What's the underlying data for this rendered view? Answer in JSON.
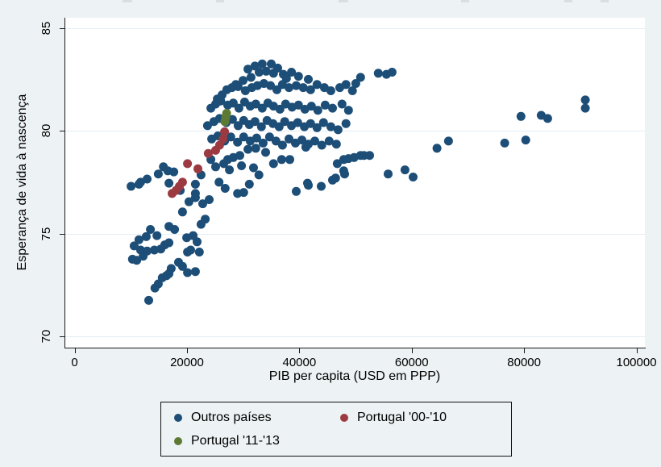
{
  "chart_data": {
    "type": "scatter",
    "title": "",
    "xlabel": "PIB per capita (USD em PPP)",
    "ylabel": "Esperança de vida à nascença",
    "xlim": [
      -1800,
      101500
    ],
    "ylim": [
      69.45,
      85.5
    ],
    "grid": "horizontal",
    "legend_position": "bottom-center",
    "x_ticks": [
      {
        "value": 0,
        "label": "0"
      },
      {
        "value": 20000,
        "label": "20000"
      },
      {
        "value": 40000,
        "label": "40000"
      },
      {
        "value": 60000,
        "label": "60000"
      },
      {
        "value": 80000,
        "label": "80000"
      },
      {
        "value": 100000,
        "label": "100000"
      }
    ],
    "y_ticks": [
      {
        "value": 70,
        "label": "70"
      },
      {
        "value": 75,
        "label": "75"
      },
      {
        "value": 80,
        "label": "80"
      },
      {
        "value": 85,
        "label": "85"
      }
    ],
    "series": [
      {
        "name": "Outros países",
        "color": "#1d4e77",
        "marker_radius": 5.5,
        "points": [
          [
            13200,
            71.75
          ],
          [
            14300,
            72.35
          ],
          [
            14900,
            72.55
          ],
          [
            15600,
            72.85
          ],
          [
            16350,
            72.95
          ],
          [
            17200,
            73.3
          ],
          [
            16800,
            73.05
          ],
          [
            18500,
            73.6
          ],
          [
            19200,
            73.4
          ],
          [
            20100,
            73.1
          ],
          [
            21500,
            73.15
          ],
          [
            10300,
            73.75
          ],
          [
            11050,
            73.7
          ],
          [
            12200,
            73.9
          ],
          [
            10600,
            74.4
          ],
          [
            11750,
            74.2
          ],
          [
            12900,
            74.15
          ],
          [
            14200,
            74.2
          ],
          [
            15350,
            74.25
          ],
          [
            16050,
            74.45
          ],
          [
            16800,
            74.55
          ],
          [
            11450,
            74.7
          ],
          [
            12750,
            74.85
          ],
          [
            19950,
            74.8
          ],
          [
            21100,
            74.9
          ],
          [
            21800,
            74.6
          ],
          [
            20650,
            74.2
          ],
          [
            20100,
            74.1
          ],
          [
            22200,
            74.1
          ],
          [
            13500,
            75.2
          ],
          [
            14650,
            74.9
          ],
          [
            16800,
            75.35
          ],
          [
            17800,
            75.2
          ],
          [
            19200,
            76.05
          ],
          [
            20350,
            76.55
          ],
          [
            21500,
            76.95
          ],
          [
            22500,
            75.45
          ],
          [
            23250,
            75.7
          ],
          [
            21500,
            76.75
          ],
          [
            22800,
            76.45
          ],
          [
            23950,
            76.65
          ],
          [
            21500,
            77.4
          ],
          [
            22500,
            77.85
          ],
          [
            25700,
            77.5
          ],
          [
            26800,
            77.2
          ],
          [
            29000,
            76.95
          ],
          [
            30100,
            77.0
          ],
          [
            31100,
            77.4
          ],
          [
            32800,
            77.85
          ],
          [
            41450,
            77.45
          ],
          [
            39450,
            77.05
          ],
          [
            41600,
            77.35
          ],
          [
            43900,
            77.3
          ],
          [
            10050,
            77.3
          ],
          [
            11450,
            77.4
          ],
          [
            11750,
            77.5
          ],
          [
            12900,
            77.65
          ],
          [
            14900,
            77.9
          ],
          [
            15800,
            78.25
          ],
          [
            16600,
            78.05
          ],
          [
            17650,
            78.0
          ],
          [
            16800,
            77.45
          ],
          [
            18800,
            77.1
          ],
          [
            45900,
            77.6
          ],
          [
            46450,
            77.7
          ],
          [
            47900,
            78.05
          ],
          [
            48050,
            77.9
          ],
          [
            46750,
            78.4
          ],
          [
            47900,
            78.6
          ],
          [
            48750,
            78.65
          ],
          [
            49750,
            78.7
          ],
          [
            50900,
            78.8
          ],
          [
            51500,
            78.8
          ],
          [
            52500,
            78.8
          ],
          [
            55800,
            77.9
          ],
          [
            58800,
            78.1
          ],
          [
            60250,
            77.75
          ],
          [
            64500,
            79.15
          ],
          [
            66550,
            79.5
          ],
          [
            76550,
            79.4
          ],
          [
            80300,
            79.55
          ],
          [
            79450,
            80.7
          ],
          [
            83050,
            80.75
          ],
          [
            84200,
            80.6
          ],
          [
            90900,
            81.5
          ],
          [
            90900,
            81.1
          ],
          [
            50050,
            82.3
          ],
          [
            50900,
            82.6
          ],
          [
            54050,
            82.8
          ],
          [
            55500,
            82.75
          ],
          [
            56500,
            82.85
          ],
          [
            30850,
            83.0
          ],
          [
            32100,
            83.15
          ],
          [
            33400,
            83.25
          ],
          [
            35000,
            83.25
          ],
          [
            36150,
            83.05
          ],
          [
            28700,
            82.25
          ],
          [
            30000,
            82.45
          ],
          [
            31400,
            82.6
          ],
          [
            32850,
            82.85
          ],
          [
            34100,
            82.9
          ],
          [
            35400,
            82.8
          ],
          [
            37150,
            82.75
          ],
          [
            38600,
            82.85
          ],
          [
            39850,
            82.65
          ],
          [
            41600,
            82.5
          ],
          [
            37700,
            82.55
          ],
          [
            25400,
            81.55
          ],
          [
            26250,
            81.75
          ],
          [
            27100,
            82.0
          ],
          [
            28000,
            82.1
          ],
          [
            29100,
            82.15
          ],
          [
            30400,
            81.95
          ],
          [
            31550,
            82.1
          ],
          [
            32550,
            82.2
          ],
          [
            33700,
            82.3
          ],
          [
            34850,
            82.2
          ],
          [
            36000,
            82.0
          ],
          [
            37000,
            82.25
          ],
          [
            38150,
            82.1
          ],
          [
            39450,
            82.2
          ],
          [
            40700,
            82.1
          ],
          [
            42000,
            82.0
          ],
          [
            43150,
            82.25
          ],
          [
            44450,
            82.1
          ],
          [
            45600,
            81.95
          ],
          [
            47200,
            82.1
          ],
          [
            48300,
            82.25
          ],
          [
            49450,
            81.95
          ],
          [
            24250,
            81.1
          ],
          [
            25100,
            81.3
          ],
          [
            26000,
            81.45
          ],
          [
            27250,
            81.25
          ],
          [
            28250,
            81.35
          ],
          [
            29250,
            81.1
          ],
          [
            30250,
            81.4
          ],
          [
            31250,
            81.2
          ],
          [
            32250,
            81.3
          ],
          [
            33400,
            81.1
          ],
          [
            34400,
            81.35
          ],
          [
            35400,
            81.2
          ],
          [
            36550,
            81.05
          ],
          [
            37550,
            81.3
          ],
          [
            38700,
            81.15
          ],
          [
            39850,
            81.25
          ],
          [
            41000,
            81.05
          ],
          [
            42150,
            81.2
          ],
          [
            43300,
            81.0
          ],
          [
            44600,
            81.25
          ],
          [
            45900,
            81.1
          ],
          [
            47600,
            81.3
          ],
          [
            48750,
            81.0
          ],
          [
            23650,
            80.25
          ],
          [
            24800,
            80.45
          ],
          [
            25800,
            80.6
          ],
          [
            27000,
            80.4
          ],
          [
            28100,
            80.55
          ],
          [
            29100,
            80.25
          ],
          [
            30100,
            80.5
          ],
          [
            31100,
            80.3
          ],
          [
            32100,
            80.45
          ],
          [
            33250,
            80.2
          ],
          [
            34250,
            80.5
          ],
          [
            35300,
            80.35
          ],
          [
            36400,
            80.2
          ],
          [
            37400,
            80.45
          ],
          [
            38600,
            80.25
          ],
          [
            39700,
            80.4
          ],
          [
            40900,
            80.2
          ],
          [
            42000,
            80.35
          ],
          [
            43150,
            80.15
          ],
          [
            44300,
            80.4
          ],
          [
            45600,
            80.2
          ],
          [
            46900,
            80.05
          ],
          [
            48300,
            80.35
          ],
          [
            24400,
            79.6
          ],
          [
            25500,
            79.75
          ],
          [
            26700,
            79.5
          ],
          [
            27800,
            79.7
          ],
          [
            29000,
            79.45
          ],
          [
            30100,
            79.7
          ],
          [
            31250,
            79.5
          ],
          [
            32400,
            79.65
          ],
          [
            33550,
            79.4
          ],
          [
            34700,
            79.7
          ],
          [
            35850,
            79.5
          ],
          [
            37000,
            79.3
          ],
          [
            38150,
            79.6
          ],
          [
            39300,
            79.4
          ],
          [
            40450,
            79.55
          ],
          [
            41600,
            79.35
          ],
          [
            42750,
            79.5
          ],
          [
            44000,
            79.3
          ],
          [
            45300,
            79.5
          ],
          [
            46600,
            79.35
          ],
          [
            24250,
            78.6
          ],
          [
            27250,
            78.6
          ],
          [
            26550,
            78.4
          ],
          [
            28250,
            78.7
          ],
          [
            29400,
            78.8
          ],
          [
            30850,
            79.1
          ],
          [
            32250,
            79.15
          ],
          [
            34000,
            78.95
          ],
          [
            36850,
            78.6
          ],
          [
            38300,
            78.6
          ],
          [
            35400,
            78.4
          ],
          [
            41150,
            79.2
          ],
          [
            25100,
            78.25
          ],
          [
            27550,
            78.1
          ],
          [
            29700,
            78.3
          ],
          [
            31850,
            78.2
          ]
        ]
      },
      {
        "name": "Portugal '00-'10",
        "color": "#9c3a41",
        "marker_radius": 5.5,
        "points": [
          [
            17350,
            76.95
          ],
          [
            18050,
            77.1
          ],
          [
            18650,
            77.3
          ],
          [
            19200,
            77.5
          ],
          [
            20100,
            78.4
          ],
          [
            21950,
            78.15
          ],
          [
            23800,
            78.9
          ],
          [
            25100,
            79.05
          ],
          [
            25800,
            79.3
          ],
          [
            26400,
            79.6
          ],
          [
            26700,
            79.95
          ]
        ]
      },
      {
        "name": "Portugal '11-'13",
        "color": "#5d7a35",
        "marker_radius": 5.5,
        "points": [
          [
            26750,
            80.45
          ],
          [
            26900,
            80.65
          ],
          [
            27050,
            80.85
          ]
        ]
      }
    ]
  }
}
